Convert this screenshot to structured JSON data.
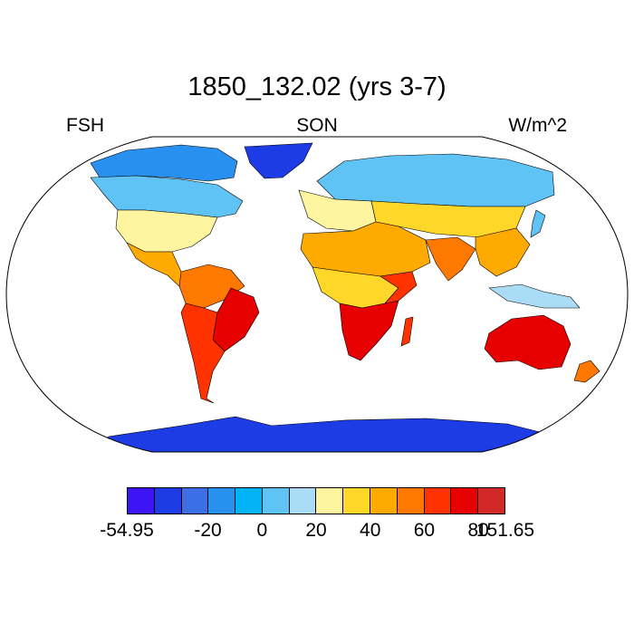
{
  "title": "1850_132.02 (yrs 3-7)",
  "left_label": "FSH",
  "center_label": "SON",
  "right_label": "W/m^2",
  "colorbar": {
    "colors": [
      "#3c14f5",
      "#1e3ce6",
      "#3c6ee6",
      "#2891f0",
      "#00b4f5",
      "#5fc3f5",
      "#aadcf5",
      "#fff5a0",
      "#ffd728",
      "#ffaa00",
      "#ff7800",
      "#ff3200",
      "#e60000",
      "#d22828"
    ],
    "tick_labels": [
      "-54.95",
      "-20",
      "0",
      "20",
      "40",
      "60",
      "80",
      "151.65"
    ]
  },
  "map": {
    "ocean_color": "#ffffff",
    "outline_color": "#000000",
    "regions": [
      {
        "name": "greenland",
        "color": "#1e3ce6"
      },
      {
        "name": "canada-arctic",
        "color": "#2891f0"
      },
      {
        "name": "north-america",
        "color": "#5fc3f5"
      },
      {
        "name": "usa",
        "color": "#fff5a0"
      },
      {
        "name": "mexico-central-america",
        "color": "#ffaa00"
      },
      {
        "name": "south-america-north",
        "color": "#ff7800"
      },
      {
        "name": "brazil-east",
        "color": "#e60000"
      },
      {
        "name": "south-america-south",
        "color": "#ff3200"
      },
      {
        "name": "eurasia-north",
        "color": "#5fc3f5"
      },
      {
        "name": "europe",
        "color": "#fff5a0"
      },
      {
        "name": "north-africa-middle-east",
        "color": "#ffaa00"
      },
      {
        "name": "central-asia",
        "color": "#ffd728"
      },
      {
        "name": "india",
        "color": "#ff7800"
      },
      {
        "name": "southeast-asia",
        "color": "#ffaa00"
      },
      {
        "name": "central-africa",
        "color": "#ffd728"
      },
      {
        "name": "east-africa",
        "color": "#ff3200"
      },
      {
        "name": "southern-africa",
        "color": "#e60000"
      },
      {
        "name": "madagascar",
        "color": "#ff3200"
      },
      {
        "name": "australia",
        "color": "#e60000"
      },
      {
        "name": "new-zealand",
        "color": "#ff7800"
      },
      {
        "name": "antarctica",
        "color": "#1e3ce6"
      },
      {
        "name": "japan",
        "color": "#5fc3f5"
      },
      {
        "name": "indonesia",
        "color": "#aadcf5"
      }
    ]
  }
}
